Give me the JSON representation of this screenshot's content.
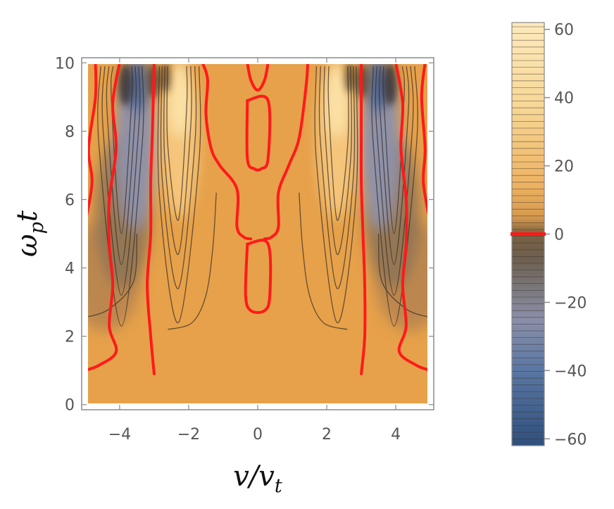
{
  "chart_data": [
    {
      "type": "contour",
      "title": "",
      "xlabel": "v/v",
      "xlabel_sub": "t",
      "ylabel": "ω",
      "ylabel_sub": "p",
      "ylabel_suffix": "t",
      "xlim": [
        -5.1,
        5.1
      ],
      "ylim": [
        -0.15,
        10.15
      ],
      "xticks": [
        -4,
        -2,
        0,
        2,
        4
      ],
      "xtick_labels": [
        "−4",
        "−2",
        "0",
        "2",
        "4"
      ],
      "yticks": [
        0,
        2,
        4,
        6,
        8,
        10
      ],
      "ytick_labels": [
        "0",
        "2",
        "4",
        "6",
        "8",
        "10"
      ],
      "colormap": [
        "#33527f",
        "#647aa0",
        "#a0a2b0",
        "#5a4e40",
        "#9b7c56",
        "#e8a54c",
        "#f2c275",
        "#fde9bd"
      ],
      "background_color": "#e6a14a",
      "zero_contour_color": "#ff1a1a",
      "zero_contours": [
        [
          [
            -5.0,
            1.0
          ],
          [
            -4.6,
            1.15
          ],
          [
            -4.1,
            1.55
          ],
          [
            -4.3,
            2.3
          ],
          [
            -4.2,
            3.5
          ],
          [
            -4.3,
            4.7
          ],
          [
            -4.3,
            6.0
          ],
          [
            -4.1,
            7.5
          ],
          [
            -4.2,
            8.8
          ],
          [
            -4.0,
            10.0
          ]
        ],
        [
          [
            -5.0,
            5.3
          ],
          [
            -4.8,
            6.5
          ],
          [
            -4.9,
            7.5
          ],
          [
            -4.7,
            9.0
          ],
          [
            -4.7,
            10.0
          ]
        ],
        [
          [
            -3.0,
            0.9
          ],
          [
            -3.1,
            2.0
          ],
          [
            -3.2,
            3.5
          ],
          [
            -3.1,
            5.0
          ],
          [
            -3.1,
            6.5
          ],
          [
            -3.05,
            8.0
          ],
          [
            -3.0,
            10.0
          ]
        ],
        [
          [
            -1.6,
            10.0
          ],
          [
            -1.45,
            9.5
          ],
          [
            -1.5,
            8.5
          ],
          [
            -1.35,
            7.5
          ],
          [
            -1.1,
            7.0
          ],
          [
            -0.6,
            6.3
          ],
          [
            -0.6,
            5.2
          ],
          [
            -0.4,
            4.9
          ],
          [
            -0.2,
            4.85
          ]
        ],
        [
          [
            -0.3,
            10.0
          ],
          [
            -0.2,
            9.5
          ],
          [
            0.0,
            9.2
          ],
          [
            0.2,
            9.5
          ],
          [
            0.3,
            10.0
          ]
        ],
        [
          [
            -0.3,
            4.7
          ],
          [
            0.3,
            4.7
          ],
          [
            0.35,
            3.2
          ],
          [
            0.2,
            2.75
          ],
          [
            -0.2,
            2.75
          ],
          [
            -0.35,
            3.2
          ],
          [
            -0.3,
            4.7
          ]
        ],
        [
          [
            -0.3,
            8.9
          ],
          [
            0.3,
            8.9
          ],
          [
            0.3,
            7.2
          ],
          [
            0.1,
            6.9
          ],
          [
            -0.1,
            6.9
          ],
          [
            -0.3,
            7.2
          ],
          [
            -0.3,
            8.9
          ]
        ],
        [
          [
            1.45,
            10.0
          ],
          [
            1.4,
            9.3
          ],
          [
            1.2,
            7.8
          ],
          [
            0.9,
            7.0
          ],
          [
            0.6,
            6.2
          ],
          [
            0.6,
            5.2
          ],
          [
            0.4,
            4.9
          ],
          [
            0.2,
            4.85
          ]
        ],
        [
          [
            3.0,
            0.9
          ],
          [
            3.1,
            2.0
          ],
          [
            3.1,
            3.5
          ],
          [
            3.05,
            5.0
          ],
          [
            3.0,
            6.5
          ],
          [
            3.0,
            8.0
          ],
          [
            3.0,
            10.0
          ]
        ],
        [
          [
            4.0,
            10.0
          ],
          [
            4.2,
            8.8
          ],
          [
            4.15,
            7.5
          ],
          [
            4.3,
            6.0
          ],
          [
            4.3,
            4.7
          ],
          [
            4.2,
            3.5
          ],
          [
            4.3,
            2.3
          ],
          [
            4.1,
            1.55
          ],
          [
            4.6,
            1.15
          ],
          [
            5.0,
            1.0
          ]
        ],
        [
          [
            4.85,
            10.0
          ],
          [
            4.75,
            9.0
          ],
          [
            4.85,
            7.5
          ],
          [
            4.8,
            6.5
          ],
          [
            5.0,
            5.3
          ]
        ]
      ]
    },
    {
      "type": "colorbar",
      "range": [
        -62,
        62
      ],
      "ticks": [
        60,
        40,
        20,
        0,
        -20,
        -40,
        -60
      ],
      "tick_labels": [
        "60",
        "40",
        "20",
        "0",
        "−20",
        "−40",
        "−60"
      ],
      "highlight_value": 0,
      "highlight_color": "#ff1a1a"
    }
  ]
}
